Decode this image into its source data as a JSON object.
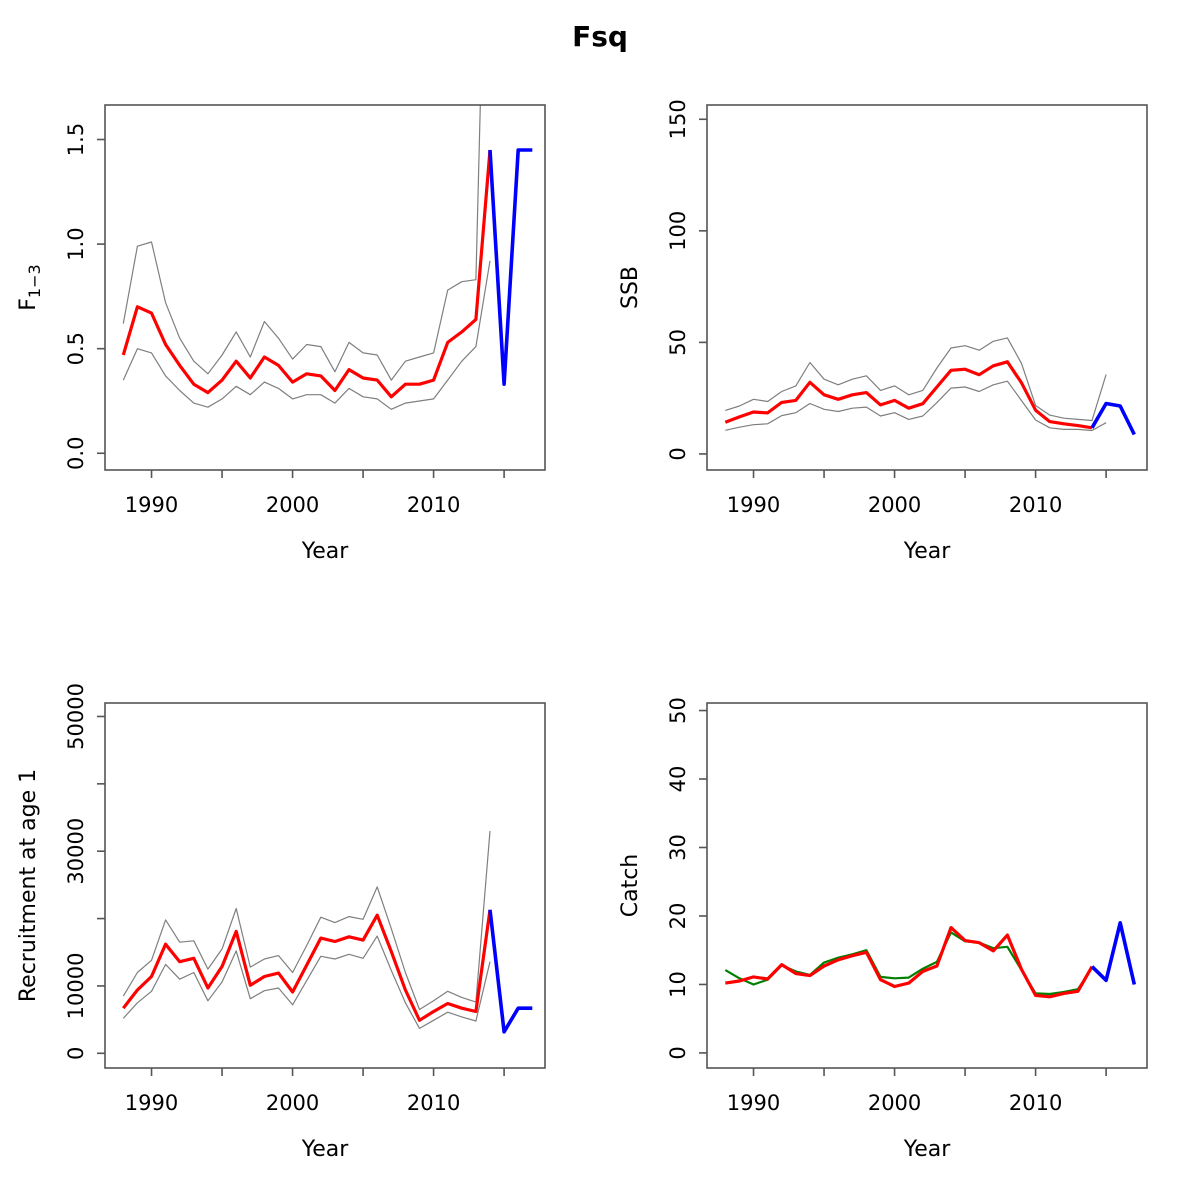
{
  "title": "Fsq",
  "colors": {
    "estimate": "#ff0000",
    "forecast": "#0000ff",
    "observed": "#008000",
    "confidence_band": "#7f7f7f",
    "axis": "#555555",
    "text": "#000000",
    "background": "#ffffff"
  },
  "x_axis": {
    "label": "Year",
    "ticks": [
      1990,
      1995,
      2000,
      2005,
      2010,
      2015
    ],
    "tick_labels": [
      "1990",
      "",
      "2000",
      "",
      "2010",
      ""
    ],
    "xlim": [
      1986.7,
      2017.9
    ]
  },
  "chart_data": [
    {
      "type": "line",
      "name": "fishing-mortality",
      "ylabel_main": "F",
      "ylabel_sub": "1−3",
      "xlabel": "Year",
      "grid": false,
      "legend": "none",
      "y_axis": {
        "ticks": [
          0,
          0.5,
          1.0,
          1.5
        ],
        "tick_labels": [
          "0.0",
          "0.5",
          "1.0",
          "1.5"
        ],
        "ylim": [
          -0.08,
          1.665
        ]
      },
      "series": [
        {
          "name": "ci-lower",
          "role": "confidence_band",
          "year_start": 1988,
          "values": [
            0.35,
            0.5,
            0.48,
            0.37,
            0.3,
            0.24,
            0.22,
            0.26,
            0.32,
            0.28,
            0.34,
            0.31,
            0.26,
            0.28,
            0.28,
            0.24,
            0.31,
            0.27,
            0.26,
            0.21,
            0.24,
            0.25,
            0.26,
            0.35,
            0.44,
            0.51,
            0.92
          ]
        },
        {
          "name": "ci-upper",
          "role": "confidence_band",
          "year_start": 1988,
          "values": [
            0.62,
            0.99,
            1.01,
            0.72,
            0.55,
            0.44,
            0.38,
            0.47,
            0.58,
            0.46,
            0.63,
            0.55,
            0.45,
            0.52,
            0.51,
            0.39,
            0.53,
            0.48,
            0.47,
            0.35,
            0.44,
            0.46,
            0.48,
            0.78,
            0.82,
            0.83,
            3.5
          ]
        },
        {
          "name": "estimate",
          "role": "estimate",
          "year_start": 1988,
          "values": [
            0.47,
            0.7,
            0.67,
            0.52,
            0.42,
            0.33,
            0.29,
            0.35,
            0.44,
            0.36,
            0.46,
            0.42,
            0.34,
            0.38,
            0.37,
            0.3,
            0.4,
            0.36,
            0.35,
            0.27,
            0.33,
            0.33,
            0.35,
            0.53,
            0.58,
            0.64,
            1.45
          ]
        },
        {
          "name": "forecast",
          "role": "forecast",
          "year_start": 2014,
          "values": [
            1.45,
            0.33,
            1.45,
            1.45
          ]
        }
      ]
    },
    {
      "type": "line",
      "name": "ssb",
      "ylabel_main": "SSB",
      "ylabel_sub": "",
      "xlabel": "Year",
      "grid": false,
      "legend": "none",
      "y_axis": {
        "ticks": [
          0,
          50,
          100,
          150
        ],
        "tick_labels": [
          "0",
          "50",
          "100",
          "150"
        ],
        "ylim": [
          -7.2,
          156.4
        ]
      },
      "series": [
        {
          "name": "ci-lower",
          "role": "confidence_band",
          "year_start": 1988,
          "values": [
            10.6,
            12.0,
            13.1,
            13.5,
            17.2,
            18.5,
            22.6,
            20.0,
            19.0,
            20.5,
            21.0,
            17.0,
            18.5,
            15.5,
            17.0,
            23.0,
            29.5,
            30.0,
            28.0,
            31.0,
            32.6,
            23.9,
            15.2,
            11.7,
            11.0,
            11.0,
            10.5,
            14.0
          ]
        },
        {
          "name": "ci-upper",
          "role": "confidence_band",
          "year_start": 1988,
          "values": [
            19.5,
            21.5,
            24.5,
            23.5,
            28.0,
            30.5,
            41.0,
            33.5,
            31.0,
            33.5,
            35.0,
            28.5,
            30.5,
            26.5,
            28.5,
            38.5,
            47.5,
            48.5,
            46.5,
            50.5,
            52.0,
            40.6,
            21.7,
            17.4,
            16.0,
            15.5,
            15.0,
            35.6
          ]
        },
        {
          "name": "estimate",
          "role": "estimate",
          "year_start": 1988,
          "values": [
            14.2,
            16.6,
            18.8,
            18.4,
            23.1,
            24.0,
            32.1,
            26.5,
            24.5,
            26.5,
            27.5,
            22.0,
            24.0,
            20.5,
            22.5,
            30.0,
            37.5,
            38.0,
            35.5,
            39.5,
            41.3,
            31.9,
            19.6,
            14.5,
            13.5,
            12.7,
            11.7
          ]
        },
        {
          "name": "forecast",
          "role": "forecast",
          "year_start": 2014,
          "values": [
            11.7,
            22.6,
            21.5,
            8.7
          ]
        }
      ]
    },
    {
      "type": "line",
      "name": "recruitment",
      "ylabel_main": "Recruitment at age 1",
      "ylabel_sub": "",
      "xlabel": "Year",
      "grid": false,
      "legend": "none",
      "y_axis": {
        "ticks": [
          0,
          10000,
          20000,
          30000,
          40000,
          50000
        ],
        "tick_labels": [
          "0",
          "10000",
          "",
          "30000",
          "",
          "50000"
        ],
        "ylim": [
          -2180,
          52000
        ]
      },
      "series": [
        {
          "name": "ci-lower",
          "role": "confidence_band",
          "year_start": 1988,
          "values": [
            5200,
            7500,
            9200,
            13200,
            11000,
            12000,
            7800,
            10600,
            15200,
            8100,
            9300,
            9700,
            7200,
            10800,
            14400,
            14000,
            14700,
            14100,
            17400,
            12300,
            7500,
            3700,
            4900,
            6100,
            5400,
            4800,
            13600
          ]
        },
        {
          "name": "ci-upper",
          "role": "confidence_band",
          "year_start": 1988,
          "values": [
            8500,
            12000,
            13800,
            19800,
            16500,
            16700,
            12500,
            15500,
            21500,
            12800,
            14000,
            14500,
            12000,
            16000,
            20200,
            19400,
            20300,
            19900,
            24700,
            18500,
            12000,
            6500,
            7800,
            9200,
            8300,
            7600,
            33000
          ]
        },
        {
          "name": "estimate",
          "role": "estimate",
          "year_start": 1988,
          "values": [
            6700,
            9400,
            11400,
            16200,
            13600,
            14100,
            9700,
            12900,
            18100,
            10100,
            11400,
            11900,
            9100,
            13100,
            17100,
            16600,
            17300,
            16800,
            20500,
            15100,
            9400,
            4900,
            6200,
            7400,
            6700,
            6200,
            21300
          ]
        },
        {
          "name": "forecast",
          "role": "forecast",
          "year_start": 2014,
          "values": [
            21300,
            3200,
            6700,
            6700
          ]
        }
      ]
    },
    {
      "type": "line",
      "name": "catch",
      "ylabel_main": "Catch",
      "ylabel_sub": "",
      "xlabel": "Year",
      "grid": false,
      "legend": "none",
      "y_axis": {
        "ticks": [
          0,
          10,
          20,
          30,
          40,
          50
        ],
        "tick_labels": [
          "0",
          "10",
          "20",
          "30",
          "40",
          "50"
        ],
        "ylim": [
          -2.2,
          51.1
        ]
      },
      "series": [
        {
          "name": "observed",
          "role": "observed",
          "year_start": 1988,
          "values": [
            12.1,
            10.9,
            10.0,
            10.7,
            12.8,
            11.9,
            11.4,
            13.2,
            13.9,
            14.4,
            15.0,
            11.1,
            10.9,
            11.0,
            12.3,
            13.3,
            17.6,
            16.3,
            16.1,
            15.3,
            15.5,
            12.1,
            8.7,
            8.6,
            8.9,
            9.3,
            12.4
          ]
        },
        {
          "name": "estimate",
          "role": "estimate",
          "year_start": 1988,
          "values": [
            10.2,
            10.5,
            11.1,
            10.8,
            12.9,
            11.6,
            11.3,
            12.7,
            13.6,
            14.2,
            14.7,
            10.7,
            9.7,
            10.2,
            11.9,
            12.7,
            18.3,
            16.4,
            16.1,
            14.9,
            17.2,
            12.2,
            8.4,
            8.2,
            8.7,
            9.0,
            12.6
          ]
        },
        {
          "name": "forecast",
          "role": "forecast",
          "year_start": 2014,
          "values": [
            12.6,
            10.6,
            19.0,
            10.0
          ]
        }
      ]
    }
  ]
}
